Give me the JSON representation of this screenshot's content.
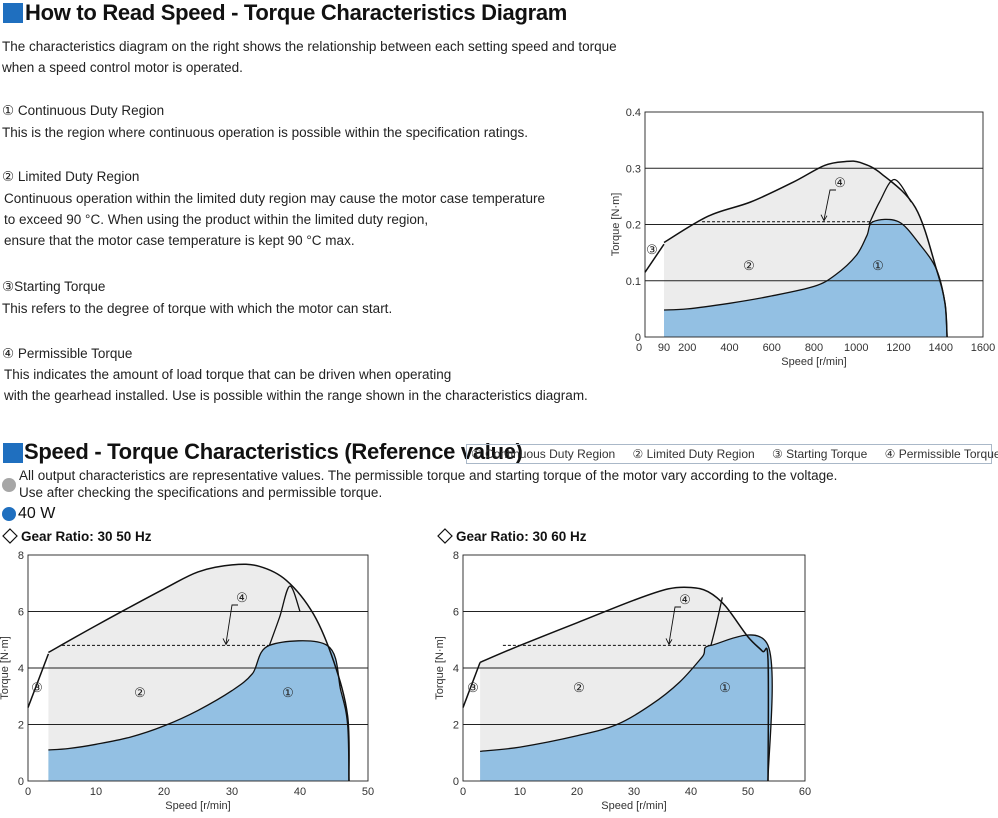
{
  "section1": {
    "title": "How to Read Speed - Torque Characteristics Diagram",
    "intro": [
      "The characteristics diagram on the right shows the relationship between each setting speed and torque",
      "when a speed control motor is operated."
    ],
    "items": [
      {
        "heading": "① Continuous Duty Region",
        "lines": [
          "This is the region where continuous operation is possible within the specification ratings."
        ]
      },
      {
        "heading": "② Limited Duty Region",
        "lines": [
          "Continuous operation within the limited duty region may cause the motor case temperature",
          "to exceed 90 °C. When using the product within the limited duty region,",
          "ensure that the motor case temperature is kept 90 °C max."
        ]
      },
      {
        "heading": "③Starting Torque",
        "lines": [
          "This refers to the degree of torque with which the motor can start."
        ]
      },
      {
        "heading": "④ Permissible Torque",
        "lines": [
          "This indicates the amount of load torque that can be driven when operating",
          "with the gearhead installed. Use is possible within the range shown in the characteristics diagram."
        ]
      }
    ]
  },
  "section2": {
    "title": "Speed - Torque Characteristics (Reference value)",
    "legend": [
      "① Continuous Duty Region",
      "② Limited Duty Region",
      "③ Starting Torque",
      "④ Permissible Torque"
    ],
    "note_lines": [
      "All output characteristics are representative values. The permissible torque and starting torque of the motor vary according to the voltage.",
      "Use after checking the specifications and permissible torque."
    ],
    "power": "40 W",
    "note_dot_color": "#a6a6a6",
    "power_dot_color": "#1f6fbf"
  },
  "colors": {
    "accent": "#1f6fbf",
    "continuous_fill": "#93c0e3",
    "limited_fill": "#ececec"
  },
  "chart_data": [
    {
      "type": "area",
      "xlabel": "Speed [r/min]",
      "ylabel": "Torque [N·m]",
      "xlim": [
        0,
        1600
      ],
      "ylim": [
        0,
        0.4
      ],
      "x_ticks": [
        0,
        90,
        200,
        400,
        600,
        800,
        1000,
        1200,
        1400,
        1600
      ],
      "y_ticks": [
        0,
        0.1,
        0.2,
        0.3,
        0.4
      ],
      "y_tick_labels": [
        "0",
        "0.1",
        "0.2",
        "0.3",
        "0.4"
      ],
      "region_labels": [
        "①",
        "②",
        "③",
        "④"
      ],
      "starting_torque": [
        [
          0,
          0.115
        ],
        [
          90,
          0.165
        ]
      ],
      "outer_curve": [
        [
          90,
          0.168
        ],
        [
          300,
          0.215
        ],
        [
          500,
          0.24
        ],
        [
          700,
          0.275
        ],
        [
          850,
          0.305
        ],
        [
          950,
          0.312
        ],
        [
          1020,
          0.31
        ],
        [
          1120,
          0.29
        ],
        [
          1280,
          0.23
        ],
        [
          1380,
          0.12
        ],
        [
          1420,
          0.06
        ],
        [
          1430,
          0
        ]
      ],
      "continuous_upper": [
        [
          90,
          0.048
        ],
        [
          200,
          0.05
        ],
        [
          400,
          0.06
        ],
        [
          600,
          0.073
        ],
        [
          800,
          0.09
        ],
        [
          900,
          0.11
        ],
        [
          1000,
          0.145
        ],
        [
          1050,
          0.18
        ],
        [
          1080,
          0.205
        ],
        [
          1200,
          0.205
        ],
        [
          1300,
          0.165
        ],
        [
          1380,
          0.12
        ],
        [
          1420,
          0.06
        ],
        [
          1430,
          0
        ]
      ],
      "permissible_torque_level": 0.205,
      "permissible_range": [
        270,
        1080
      ],
      "limited_overlay_top": 0.2,
      "branch_curve": [
        [
          1060,
          0.2
        ],
        [
          1110,
          0.24
        ],
        [
          1180,
          0.28
        ],
        [
          1260,
          0.24
        ]
      ]
    },
    {
      "type": "area",
      "title": "Gear Ratio: 30   50 Hz",
      "xlabel": "Speed [r/min]",
      "ylabel": "Torque [N·m]",
      "xlim": [
        0,
        50
      ],
      "ylim": [
        0,
        8
      ],
      "x_ticks": [
        0,
        10,
        20,
        30,
        40,
        50
      ],
      "y_ticks": [
        0,
        2,
        4,
        6,
        8
      ],
      "region_labels": [
        "①",
        "②",
        "③",
        "④"
      ],
      "starting_torque": [
        [
          0,
          2.6
        ],
        [
          3,
          4.5
        ]
      ],
      "outer_curve": [
        [
          3,
          4.55
        ],
        [
          10,
          5.5
        ],
        [
          20,
          6.8
        ],
        [
          25,
          7.4
        ],
        [
          30,
          7.65
        ],
        [
          34,
          7.6
        ],
        [
          38,
          7.1
        ],
        [
          42,
          5.9
        ],
        [
          45,
          4.2
        ],
        [
          47,
          2.3
        ],
        [
          47.2,
          0
        ]
      ],
      "continuous_upper": [
        [
          3,
          1.1
        ],
        [
          6,
          1.15
        ],
        [
          10,
          1.3
        ],
        [
          15,
          1.55
        ],
        [
          20,
          1.95
        ],
        [
          25,
          2.5
        ],
        [
          30,
          3.2
        ],
        [
          33,
          3.8
        ],
        [
          35.5,
          4.8
        ],
        [
          44,
          4.8
        ],
        [
          46,
          3.2
        ],
        [
          47,
          2.0
        ],
        [
          47.2,
          0
        ]
      ],
      "permissible_torque_level": 4.8,
      "permissible_range": [
        5,
        35.5
      ],
      "branch_curve": [
        [
          35.5,
          4.8
        ],
        [
          37,
          5.8
        ],
        [
          38.5,
          6.9
        ],
        [
          40,
          6.0
        ]
      ]
    },
    {
      "type": "area",
      "title": "Gear Ratio: 30   60 Hz",
      "xlabel": "Speed [r/min]",
      "ylabel": "Torque [N·m]",
      "xlim": [
        0,
        60
      ],
      "ylim": [
        0,
        8
      ],
      "x_ticks": [
        0,
        10,
        20,
        30,
        40,
        50,
        60
      ],
      "y_ticks": [
        0,
        2,
        4,
        6,
        8
      ],
      "region_labels": [
        "①",
        "②",
        "③",
        "④"
      ],
      "starting_torque": [
        [
          0,
          2.6
        ],
        [
          3,
          4.2
        ]
      ],
      "outer_curve": [
        [
          3,
          4.2
        ],
        [
          10,
          4.8
        ],
        [
          20,
          5.6
        ],
        [
          30,
          6.4
        ],
        [
          36,
          6.8
        ],
        [
          40,
          6.85
        ],
        [
          43,
          6.7
        ],
        [
          46,
          6.2
        ],
        [
          50,
          5.1
        ],
        [
          52.5,
          4.6
        ],
        [
          53.5,
          4.3
        ],
        [
          53.5,
          0
        ]
      ],
      "continuous_upper": [
        [
          3,
          1.05
        ],
        [
          10,
          1.2
        ],
        [
          20,
          1.6
        ],
        [
          27,
          2.0
        ],
        [
          33,
          2.7
        ],
        [
          38,
          3.5
        ],
        [
          42,
          4.4
        ],
        [
          43.5,
          4.8
        ],
        [
          53.5,
          4.8
        ],
        [
          53.5,
          0
        ]
      ],
      "permissible_torque_level": 4.8,
      "permissible_range": [
        7,
        43.5
      ],
      "branch_curve": [
        [
          43.5,
          4.8
        ],
        [
          44.5,
          5.6
        ],
        [
          45.5,
          6.5
        ]
      ]
    }
  ]
}
